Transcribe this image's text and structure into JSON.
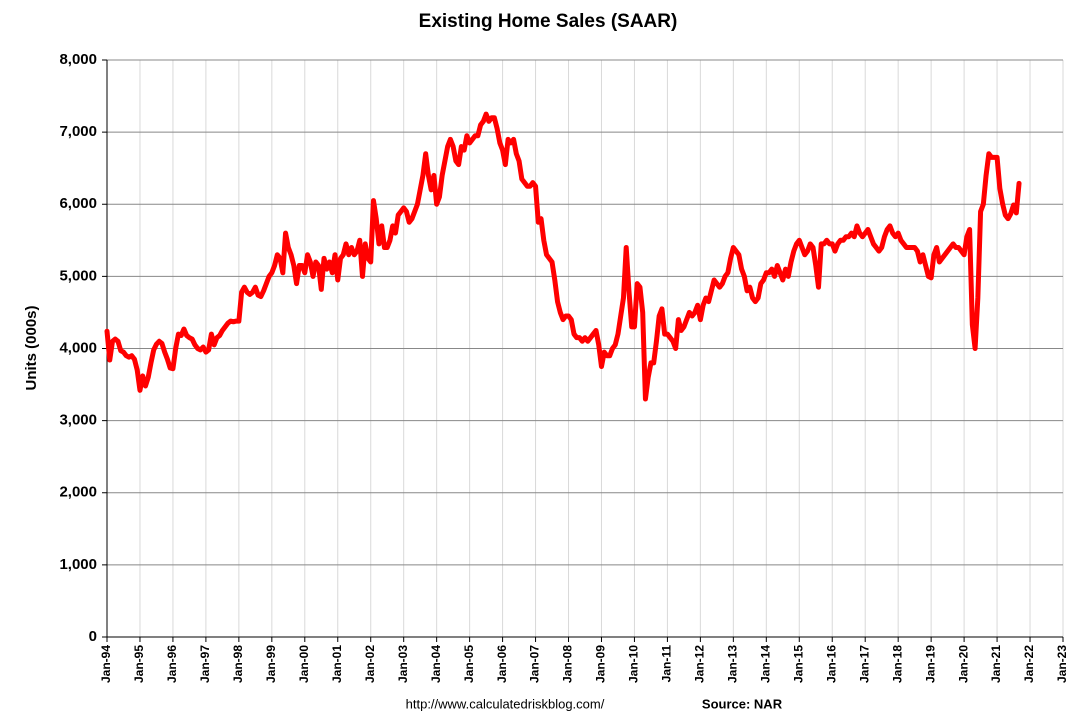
{
  "chart_data": {
    "type": "line",
    "title": "Existing Home Sales (SAAR)",
    "y_label": "Units (000s)",
    "annotations": [
      "http://www.calculatedriskblog.com/",
      "Source: NAR"
    ],
    "categories": [
      "Jan-94",
      null,
      null,
      null,
      null,
      null,
      null,
      null,
      null,
      null,
      null,
      null,
      "Jan-95",
      null,
      null,
      null,
      null,
      null,
      null,
      null,
      null,
      null,
      null,
      null,
      "Jan-96",
      null,
      null,
      null,
      null,
      null,
      null,
      null,
      null,
      null,
      null,
      null,
      "Jan-97",
      null,
      null,
      null,
      null,
      null,
      null,
      null,
      null,
      null,
      null,
      null,
      "Jan-98",
      null,
      null,
      null,
      null,
      null,
      null,
      null,
      null,
      null,
      null,
      null,
      "Jan-99",
      null,
      null,
      null,
      null,
      null,
      null,
      null,
      null,
      null,
      null,
      null,
      "Jan-00",
      null,
      null,
      null,
      null,
      null,
      null,
      null,
      null,
      null,
      null,
      null,
      "Jan-01",
      null,
      null,
      null,
      null,
      null,
      null,
      null,
      null,
      null,
      null,
      null,
      "Jan-02",
      null,
      null,
      null,
      null,
      null,
      null,
      null,
      null,
      null,
      null,
      null,
      "Jan-03",
      null,
      null,
      null,
      null,
      null,
      null,
      null,
      null,
      null,
      null,
      null,
      "Jan-04",
      null,
      null,
      null,
      null,
      null,
      null,
      null,
      null,
      null,
      null,
      null,
      "Jan-05",
      null,
      null,
      null,
      null,
      null,
      null,
      null,
      null,
      null,
      null,
      null,
      "Jan-06",
      null,
      null,
      null,
      null,
      null,
      null,
      null,
      null,
      null,
      null,
      null,
      "Jan-07",
      null,
      null,
      null,
      null,
      null,
      null,
      null,
      null,
      null,
      null,
      null,
      "Jan-08",
      null,
      null,
      null,
      null,
      null,
      null,
      null,
      null,
      null,
      null,
      null,
      "Jan-09",
      null,
      null,
      null,
      null,
      null,
      null,
      null,
      null,
      null,
      null,
      null,
      "Jan-10",
      null,
      null,
      null,
      null,
      null,
      null,
      null,
      null,
      null,
      null,
      null,
      "Jan-11",
      null,
      null,
      null,
      null,
      null,
      null,
      null,
      null,
      null,
      null,
      null,
      "Jan-12",
      null,
      null,
      null,
      null,
      null,
      null,
      null,
      null,
      null,
      null,
      null,
      "Jan-13",
      null,
      null,
      null,
      null,
      null,
      null,
      null,
      null,
      null,
      null,
      null,
      "Jan-14",
      null,
      null,
      null,
      null,
      null,
      null,
      null,
      null,
      null,
      null,
      null,
      "Jan-15",
      null,
      null,
      null,
      null,
      null,
      null,
      null,
      null,
      null,
      null,
      null,
      "Jan-16",
      null,
      null,
      null,
      null,
      null,
      null,
      null,
      null,
      null,
      null,
      null,
      "Jan-17",
      null,
      null,
      null,
      null,
      null,
      null,
      null,
      null,
      null,
      null,
      null,
      "Jan-18",
      null,
      null,
      null,
      null,
      null,
      null,
      null,
      null,
      null,
      null,
      null,
      "Jan-19",
      null,
      null,
      null,
      null,
      null,
      null,
      null,
      null,
      null,
      null,
      null,
      "Jan-20",
      null,
      null,
      null,
      null,
      null,
      null,
      null,
      null,
      null,
      null,
      null,
      "Jan-21",
      null,
      null,
      null,
      null,
      null,
      null,
      null,
      null,
      null,
      null,
      null,
      "Jan-22",
      null,
      null,
      null,
      null,
      null,
      null,
      null,
      null,
      null,
      null,
      null,
      "Jan-23"
    ],
    "series": [
      {
        "name": "Existing Home Sales",
        "color": "#ff0000",
        "values": [
          4240,
          3840,
          4100,
          4130,
          4100,
          3970,
          3950,
          3900,
          3880,
          3900,
          3850,
          3700,
          3420,
          3620,
          3480,
          3600,
          3800,
          3980,
          4060,
          4100,
          4070,
          3950,
          3850,
          3730,
          3720,
          4000,
          4200,
          4180,
          4270,
          4180,
          4150,
          4130,
          4050,
          4000,
          3980,
          4020,
          3950,
          3980,
          4200,
          4050,
          4150,
          4180,
          4250,
          4300,
          4350,
          4380,
          4370,
          4380,
          4380,
          4780,
          4850,
          4780,
          4750,
          4780,
          4850,
          4740,
          4720,
          4800,
          4900,
          5000,
          5050,
          5150,
          5300,
          5250,
          5050,
          5600,
          5400,
          5300,
          5150,
          4900,
          5150,
          5150,
          5050,
          5300,
          5200,
          5000,
          5200,
          5150,
          4820,
          5250,
          5100,
          5200,
          5050,
          5300,
          4950,
          5250,
          5300,
          5450,
          5300,
          5400,
          5300,
          5350,
          5500,
          5000,
          5450,
          5250,
          5200,
          6050,
          5800,
          5450,
          5700,
          5400,
          5400,
          5500,
          5700,
          5600,
          5850,
          5900,
          5950,
          5900,
          5750,
          5800,
          5900,
          6000,
          6200,
          6400,
          6700,
          6400,
          6200,
          6400,
          6000,
          6100,
          6400,
          6600,
          6800,
          6900,
          6800,
          6600,
          6550,
          6800,
          6750,
          6950,
          6850,
          6900,
          6950,
          6950,
          7100,
          7150,
          7250,
          7150,
          7200,
          7200,
          7050,
          6850,
          6750,
          6550,
          6900,
          6850,
          6900,
          6700,
          6600,
          6350,
          6300,
          6250,
          6250,
          6300,
          6250,
          5750,
          5800,
          5500,
          5300,
          5250,
          5200,
          4950,
          4650,
          4500,
          4400,
          4450,
          4450,
          4400,
          4200,
          4150,
          4150,
          4100,
          4150,
          4100,
          4150,
          4200,
          4250,
          4050,
          3750,
          3950,
          3900,
          3900,
          4000,
          4050,
          4200,
          4450,
          4700,
          5400,
          4800,
          4300,
          4300,
          4900,
          4850,
          4500,
          3300,
          3600,
          3800,
          3800,
          4100,
          4450,
          4550,
          4200,
          4200,
          4150,
          4100,
          4000,
          4400,
          4250,
          4300,
          4400,
          4500,
          4450,
          4500,
          4600,
          4400,
          4600,
          4700,
          4650,
          4800,
          4950,
          4900,
          4850,
          4900,
          5000,
          5050,
          5250,
          5400,
          5350,
          5300,
          5100,
          5000,
          4800,
          4850,
          4700,
          4650,
          4700,
          4900,
          4950,
          5050,
          5050,
          5100,
          5000,
          5150,
          5050,
          4950,
          5100,
          5000,
          5200,
          5350,
          5450,
          5500,
          5400,
          5300,
          5350,
          5450,
          5400,
          5150,
          4850,
          5450,
          5450,
          5500,
          5450,
          5450,
          5350,
          5450,
          5500,
          5500,
          5550,
          5550,
          5600,
          5550,
          5700,
          5600,
          5550,
          5600,
          5650,
          5550,
          5450,
          5400,
          5350,
          5400,
          5550,
          5650,
          5700,
          5600,
          5550,
          5600,
          5500,
          5450,
          5400,
          5400,
          5400,
          5400,
          5350,
          5200,
          5300,
          5150,
          5000,
          4980,
          5300,
          5400,
          5200,
          5250,
          5300,
          5350,
          5400,
          5450,
          5400,
          5400,
          5350,
          5300,
          5550,
          5650,
          4330,
          4000,
          4700,
          5900,
          6000,
          6400,
          6700,
          6650,
          6650,
          6650,
          6220,
          6010,
          5850,
          5800,
          5870,
          5990,
          5880,
          6290,
          null,
          null,
          null,
          null,
          null,
          null,
          null,
          null,
          null,
          null,
          null,
          null,
          null,
          null,
          null,
          null
        ]
      }
    ],
    "ylim": [
      0,
      8000
    ],
    "yticks": [
      0,
      {
        "value": 1000,
        "label": "1,000"
      },
      {
        "value": 2000,
        "label": "2,000"
      },
      {
        "value": 3000,
        "label": "3,000"
      },
      {
        "value": 4000,
        "label": "4,000"
      },
      {
        "value": 5000,
        "label": "5,000"
      },
      {
        "value": 6000,
        "label": "6,000"
      },
      {
        "value": 7000,
        "label": "7,000"
      },
      {
        "value": 8000,
        "label": "8,000"
      }
    ],
    "grid": true
  }
}
